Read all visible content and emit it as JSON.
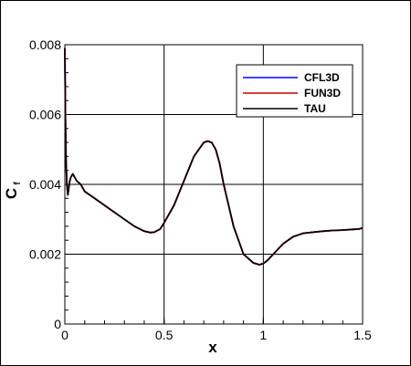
{
  "chart_data": {
    "type": "line",
    "xlabel": "x",
    "ylabel_main": "C",
    "ylabel_sub": "f",
    "xlim": [
      0,
      1.5
    ],
    "ylim": [
      0,
      0.008
    ],
    "x_ticks": [
      "0",
      "0.5",
      "1",
      "1.5"
    ],
    "y_ticks": [
      "0",
      "0.002",
      "0.004",
      "0.006",
      "0.008"
    ],
    "grid": true,
    "legend_position": "top-right",
    "series": [
      {
        "name": "CFL3D",
        "color": "#0000ff"
      },
      {
        "name": "FUN3D",
        "color": "#cc0000"
      },
      {
        "name": "TAU",
        "color": "#000000"
      }
    ],
    "x": [
      0.0,
      0.003,
      0.006,
      0.01,
      0.015,
      0.02,
      0.025,
      0.03,
      0.04,
      0.05,
      0.06,
      0.08,
      0.1,
      0.15,
      0.2,
      0.25,
      0.3,
      0.35,
      0.4,
      0.43,
      0.45,
      0.48,
      0.5,
      0.55,
      0.6,
      0.65,
      0.7,
      0.72,
      0.74,
      0.76,
      0.78,
      0.8,
      0.85,
      0.9,
      0.95,
      0.98,
      1.0,
      1.02,
      1.05,
      1.1,
      1.15,
      1.2,
      1.25,
      1.3,
      1.35,
      1.4,
      1.45,
      1.48,
      1.5
    ],
    "y": [
      0.0079,
      0.0058,
      0.0047,
      0.004,
      0.0037,
      0.0039,
      0.0041,
      0.0042,
      0.0043,
      0.0042,
      0.0041,
      0.004,
      0.0038,
      0.0036,
      0.0034,
      0.0032,
      0.003,
      0.0028,
      0.00266,
      0.00262,
      0.00263,
      0.00272,
      0.0029,
      0.0034,
      0.0041,
      0.0048,
      0.0052,
      0.00524,
      0.0052,
      0.005,
      0.0046,
      0.004,
      0.0028,
      0.002,
      0.00175,
      0.0017,
      0.00173,
      0.00182,
      0.002,
      0.0023,
      0.0025,
      0.0026,
      0.00263,
      0.00266,
      0.00268,
      0.00269,
      0.00271,
      0.00272,
      0.00275
    ]
  }
}
